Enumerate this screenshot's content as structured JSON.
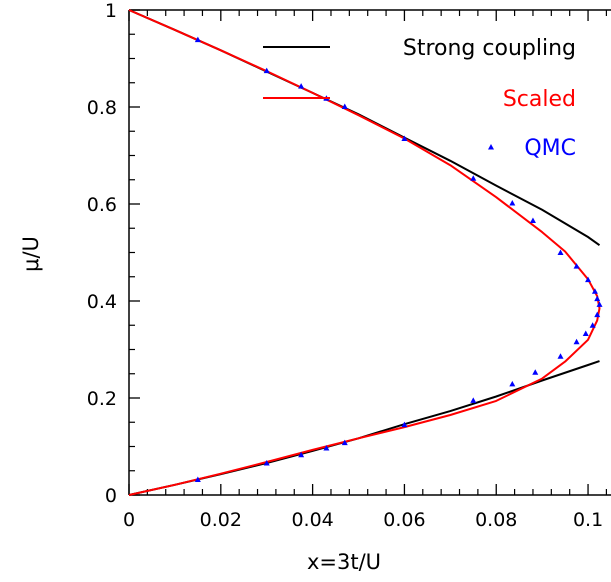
{
  "chart_data": {
    "type": "line",
    "xlabel": "x=3t/U",
    "ylabel": "μ/U",
    "xlim": [
      0,
      0.105
    ],
    "ylim": [
      0,
      1
    ],
    "xticks": [
      0,
      0.02,
      0.04,
      0.06,
      0.08,
      0.1
    ],
    "xtick_labels": [
      "0",
      "0.02",
      "0.04",
      "0.06",
      "0.08",
      "0.1"
    ],
    "yticks": [
      0,
      0.2,
      0.4,
      0.6,
      0.8,
      1
    ],
    "ytick_labels": [
      "0",
      "0.2",
      "0.4",
      "0.6",
      "0.8",
      "1"
    ],
    "grid": false,
    "legend_position": "top-right",
    "colors": {
      "strong": "#000000",
      "scaled": "#ff0000",
      "qmc": "#0000ff"
    },
    "series": [
      {
        "name": "Strong coupling",
        "style": "line",
        "branches": [
          {
            "x": [
              0,
              0.01,
              0.02,
              0.03,
              0.04,
              0.05,
              0.06,
              0.07,
              0.08,
              0.09,
              0.1,
              0.1025
            ],
            "y": [
              1,
              0.959,
              0.917,
              0.873,
              0.829,
              0.785,
              0.737,
              0.689,
              0.638,
              0.588,
              0.532,
              0.515
            ]
          },
          {
            "x": [
              0,
              0.01,
              0.02,
              0.03,
              0.04,
              0.05,
              0.06,
              0.07,
              0.08,
              0.09,
              0.1,
              0.1025
            ],
            "y": [
              0,
              0.021,
              0.043,
              0.066,
              0.091,
              0.117,
              0.146,
              0.173,
              0.203,
              0.236,
              0.268,
              0.276
            ]
          }
        ]
      },
      {
        "name": "Scaled",
        "style": "line",
        "x": [
          0,
          0.01,
          0.02,
          0.03,
          0.04,
          0.05,
          0.06,
          0.07,
          0.08,
          0.09,
          0.095,
          0.1,
          0.102,
          0.1025,
          0.102,
          0.1,
          0.095,
          0.09,
          0.08,
          0.07,
          0.06,
          0.05,
          0.04,
          0.03,
          0.02,
          0.01,
          0
        ],
        "y": [
          1,
          0.959,
          0.917,
          0.874,
          0.829,
          0.783,
          0.735,
          0.68,
          0.614,
          0.542,
          0.502,
          0.445,
          0.41,
          0.385,
          0.36,
          0.32,
          0.275,
          0.24,
          0.194,
          0.165,
          0.14,
          0.117,
          0.093,
          0.068,
          0.044,
          0.021,
          0
        ]
      },
      {
        "name": "QMC",
        "style": "marker",
        "x": [
          0.015,
          0.03,
          0.0375,
          0.043,
          0.047,
          0.06,
          0.075,
          0.0835,
          0.088,
          0.094,
          0.0975,
          0.1,
          0.1015,
          0.102,
          0.1025,
          0.102,
          0.101,
          0.0995,
          0.0975,
          0.094,
          0.0885,
          0.0835,
          0.075,
          0.06,
          0.047,
          0.043,
          0.0375,
          0.03,
          0.015
        ],
        "y": [
          0.939,
          0.875,
          0.843,
          0.818,
          0.801,
          0.735,
          0.653,
          0.602,
          0.566,
          0.5,
          0.472,
          0.444,
          0.42,
          0.405,
          0.393,
          0.372,
          0.35,
          0.333,
          0.316,
          0.286,
          0.253,
          0.229,
          0.195,
          0.145,
          0.108,
          0.097,
          0.083,
          0.066,
          0.032
        ]
      }
    ]
  }
}
